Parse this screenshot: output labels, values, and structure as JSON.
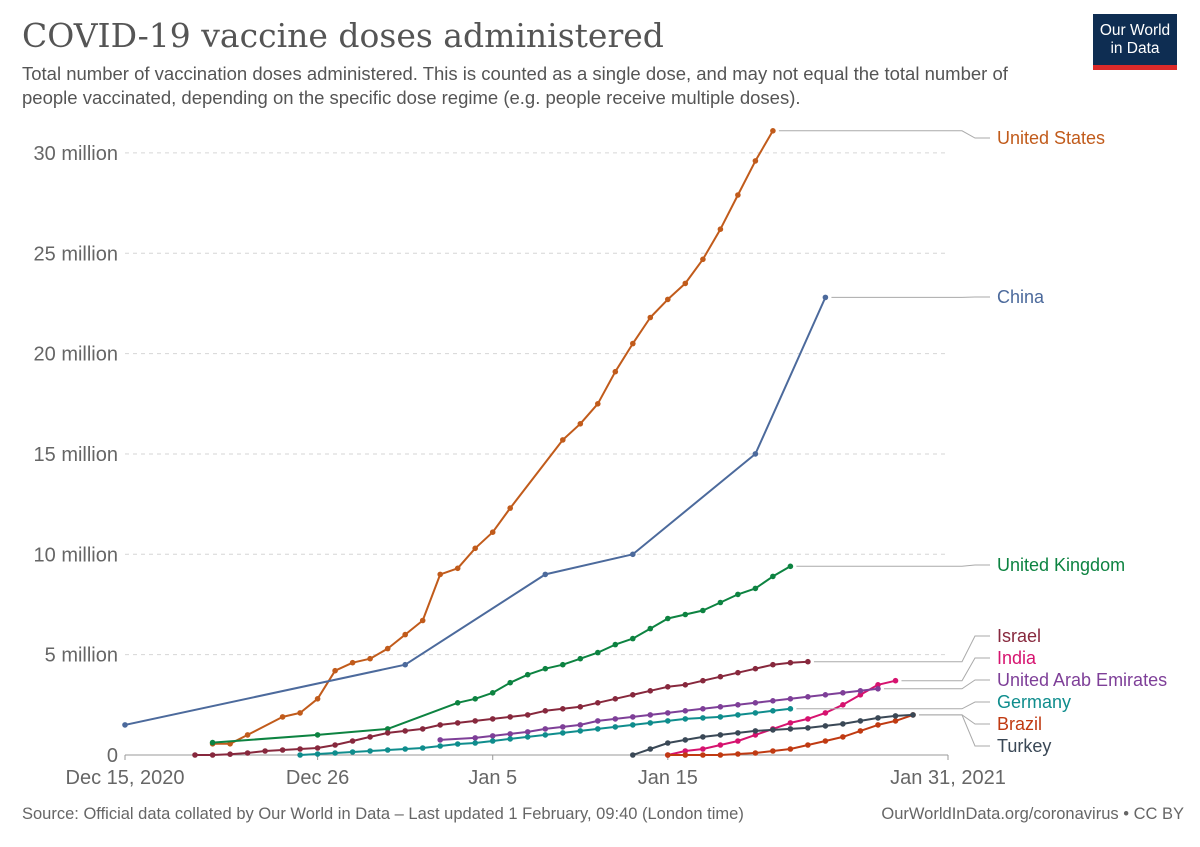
{
  "header": {
    "title": "COVID-19 vaccine doses administered",
    "subtitle": "Total number of vaccination doses administered. This is counted as a single dose, and may not equal the total number of people vaccinated, depending on the specific dose regime (e.g. people receive multiple doses)."
  },
  "logo": {
    "line1": "Our World",
    "line2": "in Data"
  },
  "footer": {
    "source": "Source: Official data collated by Our World in Data – Last updated 1 February, 09:40 (London time)",
    "credit": "OurWorldInData.org/coronavirus • CC BY"
  },
  "chart_data": {
    "type": "line",
    "title": "COVID-19 vaccine doses administered",
    "xlabel": "",
    "ylabel": "",
    "x_axis_ticks": [
      {
        "label": "Dec 15, 2020",
        "day": 0
      },
      {
        "label": "Dec 26",
        "day": 11
      },
      {
        "label": "Jan 5",
        "day": 21
      },
      {
        "label": "Jan 15",
        "day": 31
      },
      {
        "label": "Jan 31, 2021",
        "day": 47
      }
    ],
    "y_axis_ticks": [
      {
        "label": "0",
        "value": 0
      },
      {
        "label": "5 million",
        "value": 5000000
      },
      {
        "label": "10 million",
        "value": 10000000
      },
      {
        "label": "15 million",
        "value": 15000000
      },
      {
        "label": "20 million",
        "value": 20000000
      },
      {
        "label": "25 million",
        "value": 25000000
      },
      {
        "label": "30 million",
        "value": 30000000
      }
    ],
    "xlim": [
      0,
      47
    ],
    "ylim": [
      0,
      32000000
    ],
    "grid": "horizontal dashed",
    "legend": "inline labels at right end of lines",
    "series": [
      {
        "name": "United States",
        "color": "#c15b1b",
        "points": [
          [
            5,
            0.56
          ],
          [
            6,
            0.56
          ],
          [
            7,
            1.0
          ],
          [
            9,
            1.9
          ],
          [
            10,
            2.1
          ],
          [
            11,
            2.8
          ],
          [
            12,
            4.2
          ],
          [
            13,
            4.6
          ],
          [
            14,
            4.8
          ],
          [
            15,
            5.3
          ],
          [
            16,
            6.0
          ],
          [
            17,
            6.7
          ],
          [
            18,
            9.0
          ],
          [
            19,
            9.3
          ],
          [
            20,
            10.3
          ],
          [
            21,
            11.1
          ],
          [
            22,
            12.3
          ],
          [
            25,
            15.7
          ],
          [
            26,
            16.5
          ],
          [
            27,
            17.5
          ],
          [
            28,
            19.1
          ],
          [
            29,
            20.5
          ],
          [
            30,
            21.8
          ],
          [
            31,
            22.7
          ],
          [
            32,
            23.5
          ],
          [
            33,
            24.7
          ],
          [
            34,
            26.2
          ],
          [
            35,
            27.9
          ],
          [
            36,
            29.6
          ],
          [
            37,
            31.1
          ]
        ]
      },
      {
        "name": "China",
        "color": "#4c6a9c",
        "points": [
          [
            0,
            1.5
          ],
          [
            16,
            4.5
          ],
          [
            24,
            9.0
          ],
          [
            29,
            10.0
          ],
          [
            36,
            15.0
          ],
          [
            40,
            22.8
          ]
        ]
      },
      {
        "name": "United Kingdom",
        "color": "#0d8341",
        "points": [
          [
            5,
            0.62
          ],
          [
            11,
            1.0
          ],
          [
            15,
            1.3
          ],
          [
            19,
            2.6
          ],
          [
            20,
            2.8
          ],
          [
            21,
            3.1
          ],
          [
            22,
            3.6
          ],
          [
            23,
            4.0
          ],
          [
            24,
            4.3
          ],
          [
            25,
            4.5
          ],
          [
            26,
            4.8
          ],
          [
            27,
            5.1
          ],
          [
            28,
            5.5
          ],
          [
            29,
            5.8
          ],
          [
            30,
            6.3
          ],
          [
            31,
            6.8
          ],
          [
            32,
            7.0
          ],
          [
            33,
            7.2
          ],
          [
            34,
            7.6
          ],
          [
            35,
            8.0
          ],
          [
            36,
            8.3
          ],
          [
            37,
            8.9
          ],
          [
            38,
            9.4
          ]
        ]
      },
      {
        "name": "Israel",
        "color": "#87283d",
        "points": [
          [
            4,
            0.0
          ],
          [
            5,
            0.0
          ],
          [
            6,
            0.04
          ],
          [
            7,
            0.1
          ],
          [
            8,
            0.2
          ],
          [
            9,
            0.25
          ],
          [
            10,
            0.3
          ],
          [
            11,
            0.35
          ],
          [
            12,
            0.5
          ],
          [
            13,
            0.7
          ],
          [
            14,
            0.9
          ],
          [
            15,
            1.1
          ],
          [
            16,
            1.2
          ],
          [
            17,
            1.3
          ],
          [
            18,
            1.5
          ],
          [
            19,
            1.6
          ],
          [
            20,
            1.7
          ],
          [
            21,
            1.8
          ],
          [
            22,
            1.9
          ],
          [
            23,
            2.0
          ],
          [
            24,
            2.2
          ],
          [
            25,
            2.3
          ],
          [
            26,
            2.4
          ],
          [
            27,
            2.6
          ],
          [
            28,
            2.8
          ],
          [
            29,
            3.0
          ],
          [
            30,
            3.2
          ],
          [
            31,
            3.4
          ],
          [
            32,
            3.5
          ],
          [
            33,
            3.7
          ],
          [
            34,
            3.9
          ],
          [
            35,
            4.1
          ],
          [
            36,
            4.3
          ],
          [
            37,
            4.5
          ],
          [
            38,
            4.6
          ],
          [
            39,
            4.65
          ]
        ]
      },
      {
        "name": "India",
        "color": "#d6136f",
        "points": [
          [
            31,
            0.0
          ],
          [
            32,
            0.2
          ],
          [
            33,
            0.3
          ],
          [
            34,
            0.5
          ],
          [
            35,
            0.7
          ],
          [
            36,
            1.0
          ],
          [
            37,
            1.3
          ],
          [
            38,
            1.6
          ],
          [
            39,
            1.8
          ],
          [
            40,
            2.1
          ],
          [
            41,
            2.5
          ],
          [
            42,
            3.0
          ],
          [
            43,
            3.5
          ],
          [
            44,
            3.7
          ]
        ]
      },
      {
        "name": "United Arab Emirates",
        "color": "#7e3f98",
        "points": [
          [
            18,
            0.75
          ],
          [
            20,
            0.85
          ],
          [
            21,
            0.95
          ],
          [
            22,
            1.05
          ],
          [
            23,
            1.15
          ],
          [
            24,
            1.3
          ],
          [
            25,
            1.4
          ],
          [
            26,
            1.5
          ],
          [
            27,
            1.7
          ],
          [
            28,
            1.8
          ],
          [
            29,
            1.9
          ],
          [
            30,
            2.0
          ],
          [
            31,
            2.1
          ],
          [
            32,
            2.2
          ],
          [
            33,
            2.3
          ],
          [
            34,
            2.4
          ],
          [
            35,
            2.5
          ],
          [
            36,
            2.6
          ],
          [
            37,
            2.7
          ],
          [
            38,
            2.8
          ],
          [
            39,
            2.9
          ],
          [
            40,
            3.0
          ],
          [
            41,
            3.1
          ],
          [
            42,
            3.2
          ],
          [
            43,
            3.3
          ]
        ]
      },
      {
        "name": "Germany",
        "color": "#0f8d8d",
        "points": [
          [
            10,
            0.0
          ],
          [
            11,
            0.05
          ],
          [
            12,
            0.1
          ],
          [
            13,
            0.15
          ],
          [
            14,
            0.2
          ],
          [
            15,
            0.25
          ],
          [
            16,
            0.3
          ],
          [
            17,
            0.35
          ],
          [
            18,
            0.45
          ],
          [
            19,
            0.55
          ],
          [
            20,
            0.6
          ],
          [
            21,
            0.7
          ],
          [
            22,
            0.8
          ],
          [
            23,
            0.9
          ],
          [
            24,
            1.0
          ],
          [
            25,
            1.1
          ],
          [
            26,
            1.2
          ],
          [
            27,
            1.3
          ],
          [
            28,
            1.4
          ],
          [
            29,
            1.5
          ],
          [
            30,
            1.6
          ],
          [
            31,
            1.7
          ],
          [
            32,
            1.8
          ],
          [
            33,
            1.85
          ],
          [
            34,
            1.9
          ],
          [
            35,
            2.0
          ],
          [
            36,
            2.1
          ],
          [
            37,
            2.2
          ],
          [
            38,
            2.3
          ]
        ]
      },
      {
        "name": "Brazil",
        "color": "#c03a12",
        "points": [
          [
            31,
            0.0
          ],
          [
            32,
            0.0
          ],
          [
            33,
            0.0
          ],
          [
            34,
            0.0
          ],
          [
            35,
            0.05
          ],
          [
            36,
            0.1
          ],
          [
            37,
            0.2
          ],
          [
            38,
            0.3
          ],
          [
            39,
            0.5
          ],
          [
            40,
            0.7
          ],
          [
            41,
            0.9
          ],
          [
            42,
            1.2
          ],
          [
            43,
            1.5
          ],
          [
            44,
            1.7
          ],
          [
            45,
            2.0
          ]
        ]
      },
      {
        "name": "Turkey",
        "color": "#3a4856",
        "points": [
          [
            29,
            0.0
          ],
          [
            30,
            0.3
          ],
          [
            31,
            0.6
          ],
          [
            32,
            0.75
          ],
          [
            33,
            0.9
          ],
          [
            34,
            1.0
          ],
          [
            35,
            1.1
          ],
          [
            36,
            1.2
          ],
          [
            37,
            1.25
          ],
          [
            38,
            1.3
          ],
          [
            39,
            1.35
          ],
          [
            40,
            1.45
          ],
          [
            41,
            1.55
          ],
          [
            42,
            1.7
          ],
          [
            43,
            1.85
          ],
          [
            44,
            1.95
          ],
          [
            45,
            2.0
          ]
        ]
      }
    ]
  }
}
